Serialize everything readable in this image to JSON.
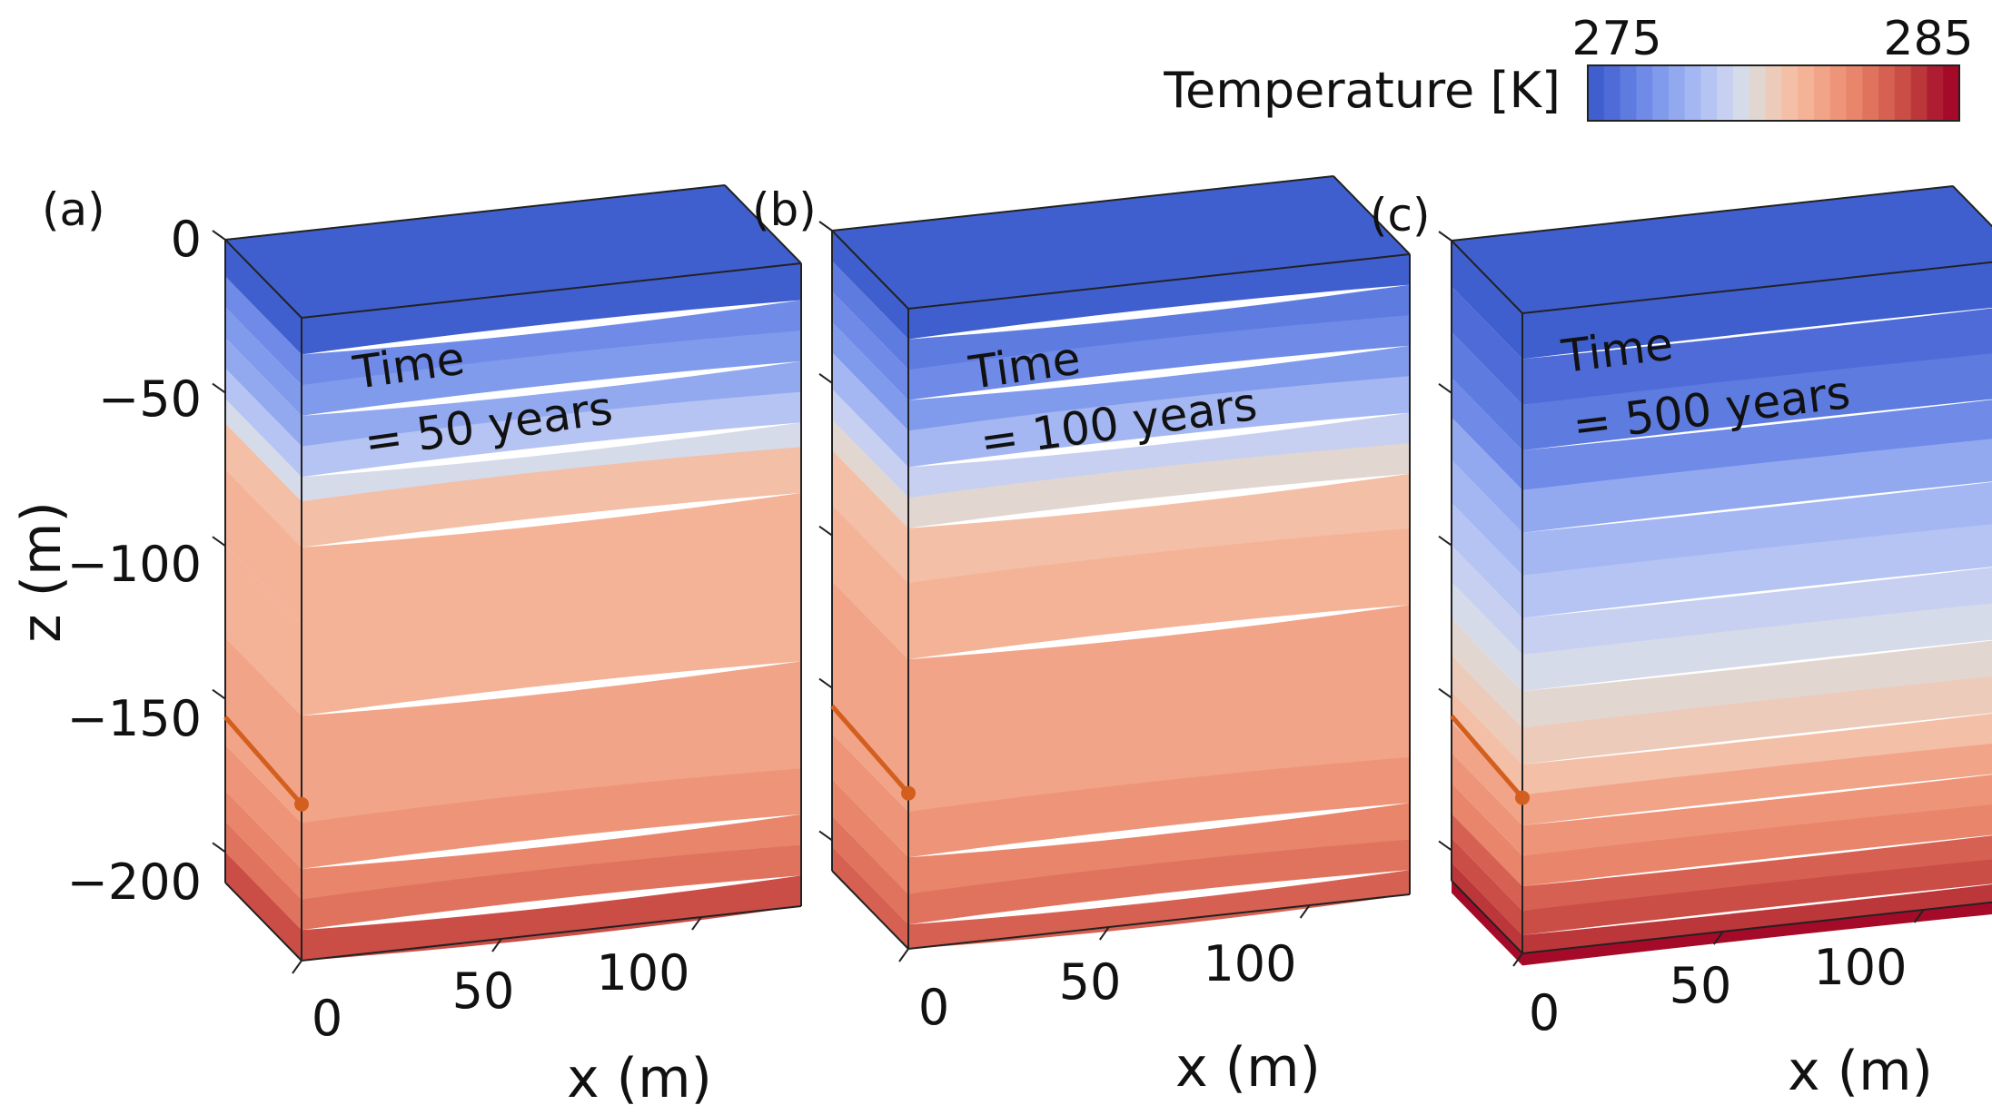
{
  "chart_data": {
    "type": "heatmap",
    "title": "",
    "colorbar": {
      "label": "Temperature [K]",
      "min": 275,
      "max": 285,
      "tick_labels": [
        "275",
        "285"
      ],
      "colors": [
        "#3f5fcf",
        "#4e6bd8",
        "#5e7be0",
        "#6f8ae7",
        "#809aec",
        "#92a9f0",
        "#a4b7f2",
        "#b6c4f3",
        "#c7d0f1",
        "#d6dbe9",
        "#e2d6d0",
        "#edcbbb",
        "#f3bfa6",
        "#f4b296",
        "#f2a488",
        "#ee9579",
        "#e8856b",
        "#e0735e",
        "#d66152",
        "#ca4d46",
        "#bc373a",
        "#ae1d31",
        "#a50b28"
      ],
      "placement": "top-right"
    },
    "axes": {
      "xlabel": "x (m)",
      "zlabel": "z (m)",
      "x_ticks": [
        "0",
        "50",
        "100"
      ],
      "z_ticks": [
        "0",
        "−50",
        "−100",
        "−150",
        "−200"
      ],
      "x_range": [
        0,
        125
      ],
      "z_range": [
        -210,
        0
      ]
    },
    "series": [
      {
        "name": "(a)",
        "annotation_line1": "Time",
        "annotation_line2": "= 50 years",
        "time_years": 50,
        "well_depth_m": -150,
        "front_layers": [
          {
            "depth_m": -2,
            "color": "#3f5fcf"
          },
          {
            "depth_m": -12,
            "color": "#6f8ae7"
          },
          {
            "depth_m": -22,
            "color": "#809aec"
          },
          {
            "depth_m": -32,
            "color": "#92a9f0"
          },
          {
            "depth_m": -42,
            "color": "#b6c4f3"
          },
          {
            "depth_m": -52,
            "color": "#d6dbe9"
          },
          {
            "depth_m": -60,
            "color": "#f3bfa6"
          },
          {
            "depth_m": -75,
            "color": "#f4b296"
          },
          {
            "depth_m": -100,
            "color": "#f4b296"
          },
          {
            "depth_m": -130,
            "color": "#f2a488"
          },
          {
            "depth_m": -165,
            "color": "#ee9579"
          },
          {
            "depth_m": -180,
            "color": "#e8856b"
          },
          {
            "depth_m": -190,
            "color": "#e0735e"
          },
          {
            "depth_m": -200,
            "color": "#ca4d46"
          }
        ]
      },
      {
        "name": "(b)",
        "annotation_line1": "Time",
        "annotation_line2": "= 100 years",
        "time_years": 100,
        "well_depth_m": -150,
        "front_layers": [
          {
            "depth_m": -2,
            "color": "#3f5fcf"
          },
          {
            "depth_m": -10,
            "color": "#5e7be0"
          },
          {
            "depth_m": -20,
            "color": "#6f8ae7"
          },
          {
            "depth_m": -30,
            "color": "#809aec"
          },
          {
            "depth_m": -40,
            "color": "#a4b7f2"
          },
          {
            "depth_m": -52,
            "color": "#c7d0f1"
          },
          {
            "depth_m": -62,
            "color": "#e2d6d0"
          },
          {
            "depth_m": -72,
            "color": "#f3bfa6"
          },
          {
            "depth_m": -90,
            "color": "#f4b296"
          },
          {
            "depth_m": -115,
            "color": "#f2a488"
          },
          {
            "depth_m": -165,
            "color": "#ee9579"
          },
          {
            "depth_m": -180,
            "color": "#e8856b"
          },
          {
            "depth_m": -192,
            "color": "#e0735e"
          },
          {
            "depth_m": -202,
            "color": "#d66152"
          }
        ]
      },
      {
        "name": "(c)",
        "annotation_line1": "Time",
        "annotation_line2": "= 500 years",
        "time_years": 500,
        "well_depth_m": -150,
        "front_layers": [
          {
            "depth_m": -2,
            "color": "#3f5fcf"
          },
          {
            "depth_m": -15,
            "color": "#4e6bd8"
          },
          {
            "depth_m": -30,
            "color": "#5e7be0"
          },
          {
            "depth_m": -45,
            "color": "#6f8ae7"
          },
          {
            "depth_m": -58,
            "color": "#92a9f0"
          },
          {
            "depth_m": -72,
            "color": "#a4b7f2"
          },
          {
            "depth_m": -86,
            "color": "#b6c4f3"
          },
          {
            "depth_m": -100,
            "color": "#c7d0f1"
          },
          {
            "depth_m": -112,
            "color": "#d6dbe9"
          },
          {
            "depth_m": -124,
            "color": "#e2d6d0"
          },
          {
            "depth_m": -136,
            "color": "#edcbbb"
          },
          {
            "depth_m": -148,
            "color": "#f3bfa6"
          },
          {
            "depth_m": -158,
            "color": "#f2a488"
          },
          {
            "depth_m": -168,
            "color": "#ee9579"
          },
          {
            "depth_m": -178,
            "color": "#e8856b"
          },
          {
            "depth_m": -188,
            "color": "#d66152"
          },
          {
            "depth_m": -196,
            "color": "#ca4d46"
          },
          {
            "depth_m": -204,
            "color": "#bc373a"
          },
          {
            "depth_m": -214,
            "color": "#a50b28"
          }
        ]
      }
    ]
  }
}
